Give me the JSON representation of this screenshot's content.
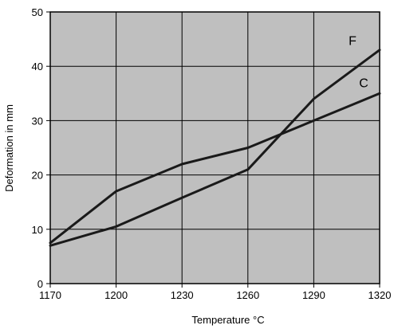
{
  "chart_data": {
    "type": "line",
    "title": "",
    "xlabel": "Temperature  °C",
    "ylabel": "Deformation  in mm",
    "x": [
      1170,
      1200,
      1230,
      1260,
      1290,
      1320
    ],
    "xticks": [
      "1170",
      "1200",
      "1230",
      "1260",
      "1290",
      "1320"
    ],
    "yticks": [
      "0",
      "10",
      "20",
      "30",
      "40",
      "50"
    ],
    "xlim": [
      1170,
      1320
    ],
    "ylim": [
      0,
      50
    ],
    "grid": true,
    "series": [
      {
        "name": "F",
        "values": [
          7,
          10.5,
          15.8,
          21,
          34,
          43
        ]
      },
      {
        "name": "C",
        "values": [
          7.5,
          17,
          22,
          25,
          30,
          35
        ]
      }
    ],
    "colors": {
      "plot_background": "#bfbfbf",
      "grid": "#000000",
      "line": "#1a1a1a"
    }
  }
}
